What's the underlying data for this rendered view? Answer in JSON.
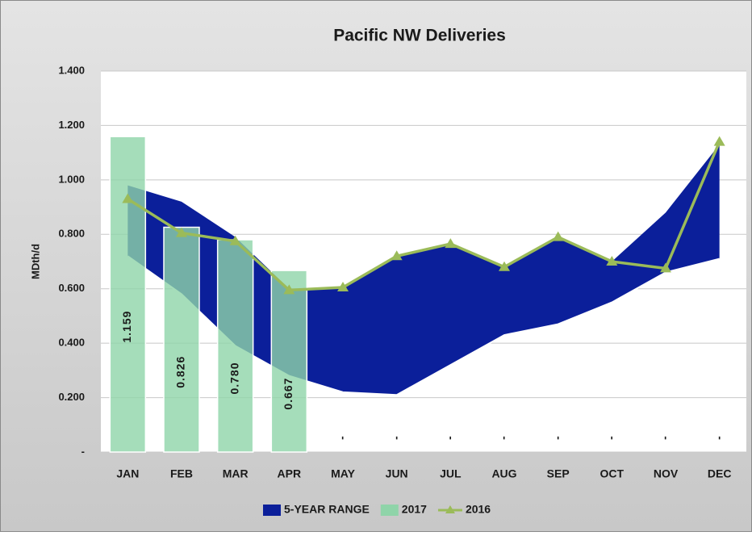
{
  "chart_data": {
    "type": "range-bar-line",
    "title": "Pacific NW Deliveries",
    "y_label": "MDth/d",
    "categories": [
      "JAN",
      "FEB",
      "MAR",
      "APR",
      "MAY",
      "JUN",
      "JUL",
      "AUG",
      "SEP",
      "OCT",
      "NOV",
      "DEC"
    ],
    "ylim": [
      0,
      1.4
    ],
    "yticks": [
      {
        "value": 0,
        "label": "-"
      },
      {
        "value": 0.2,
        "label": "0.200"
      },
      {
        "value": 0.4,
        "label": "0.400"
      },
      {
        "value": 0.6,
        "label": "0.600"
      },
      {
        "value": 0.8,
        "label": "0.800"
      },
      {
        "value": 1.0,
        "label": "1.000"
      },
      {
        "value": 1.2,
        "label": "1.200"
      },
      {
        "value": 1.4,
        "label": "1.400"
      }
    ],
    "grid": true,
    "legend": "bottom",
    "series": [
      {
        "name": "5-YEAR RANGE",
        "kind": "range",
        "color": "#0b1f9a",
        "low": [
          0.72,
          0.58,
          0.39,
          0.28,
          0.22,
          0.21,
          0.32,
          0.43,
          0.47,
          0.55,
          0.66,
          0.71
        ],
        "high": [
          0.98,
          0.92,
          0.79,
          0.6,
          0.6,
          0.72,
          0.765,
          0.68,
          0.79,
          0.7,
          0.88,
          1.13
        ]
      },
      {
        "name": "2017",
        "kind": "bar",
        "color": "#8fd4a9",
        "values": [
          1.159,
          0.826,
          0.78,
          0.667,
          0,
          0,
          0,
          0,
          0,
          0,
          0,
          0
        ],
        "value_labels": [
          "1.159",
          "0.826",
          "0.780",
          "0.667",
          "-",
          "-",
          "-",
          "-",
          "-",
          "-",
          "-",
          "-"
        ]
      },
      {
        "name": "2016",
        "kind": "line",
        "color": "#9bbb59",
        "values": [
          0.93,
          0.805,
          0.775,
          0.595,
          0.605,
          0.72,
          0.765,
          0.68,
          0.79,
          0.7,
          0.675,
          1.14
        ]
      }
    ]
  }
}
